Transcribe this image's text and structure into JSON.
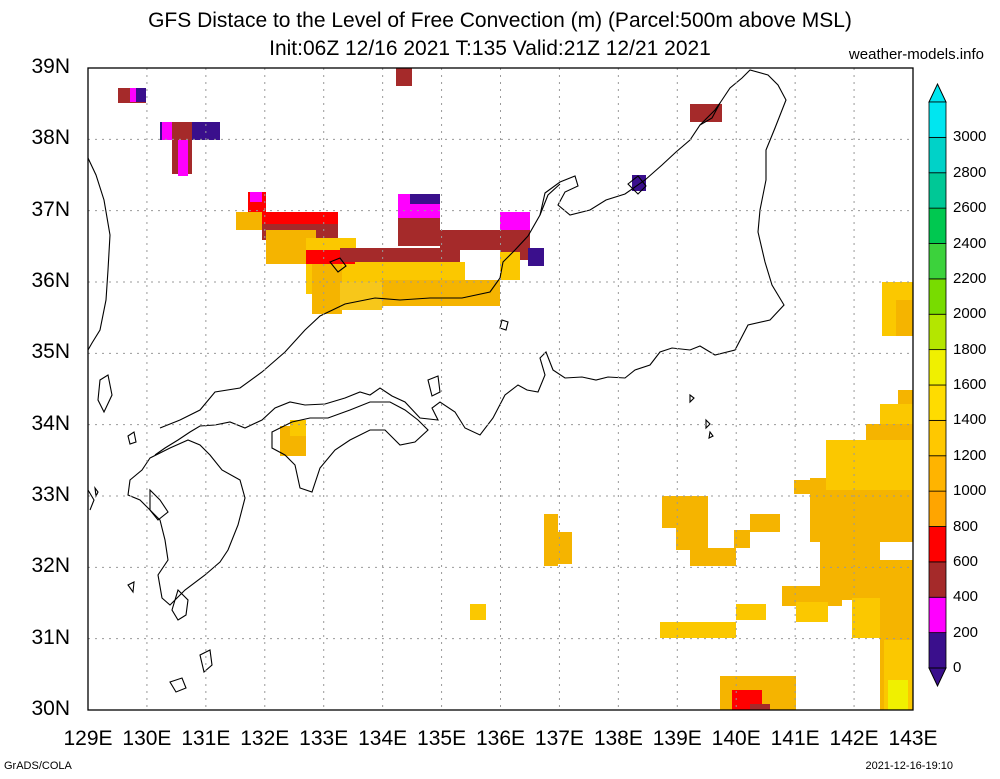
{
  "header": {
    "title_line1": "GFS Distace to the Level of Free Convection (m) (Parcel:500m above MSL)",
    "title_line2": "Init:06Z 12/16 2021 T:135 Valid:21Z 12/21 2021",
    "site": "weather-models.info"
  },
  "footer": {
    "left": "GrADS/COLA",
    "right": "2021-12-16-19:10"
  },
  "axes": {
    "lon_labels": [
      "129E",
      "130E",
      "131E",
      "132E",
      "133E",
      "134E",
      "135E",
      "136E",
      "137E",
      "138E",
      "139E",
      "140E",
      "141E",
      "142E",
      "143E"
    ],
    "lat_labels": [
      "39N",
      "38N",
      "37N",
      "36N",
      "35N",
      "34N",
      "33N",
      "32N",
      "31N",
      "30N"
    ],
    "grid": "dotted"
  },
  "colorbar": {
    "labels": [
      "0",
      "200",
      "400",
      "600",
      "800",
      "1000",
      "1200",
      "1400",
      "1600",
      "1800",
      "2000",
      "2200",
      "2400",
      "2600",
      "2800",
      "3000"
    ],
    "colors": [
      "#3a0f8c",
      "#ff00ff",
      "#a52a2a",
      "#ff0000",
      "#ffa500",
      "#ffb400",
      "#ffc800",
      "#ffdc00",
      "#f0f000",
      "#b4e600",
      "#78dc00",
      "#3cd23c",
      "#00c850",
      "#00c896",
      "#00d2c8",
      "#00e6f0"
    ]
  },
  "colors": {
    "coast": "#000000",
    "grid": "#999999"
  }
}
